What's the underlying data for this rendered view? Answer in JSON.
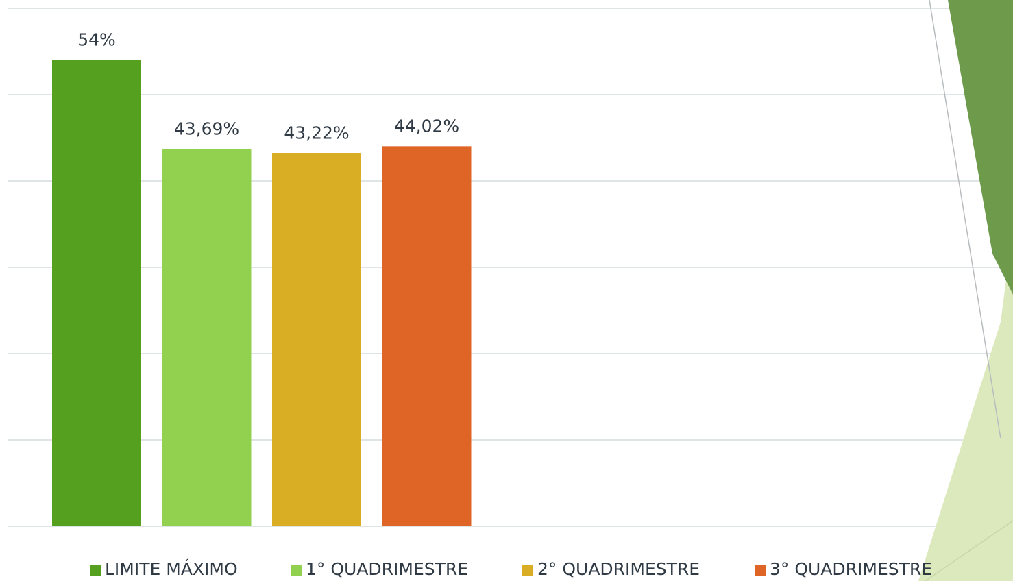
{
  "chart_data": {
    "type": "bar",
    "categories": [
      null
    ],
    "series": [
      {
        "name": "LIMITE MÁXIMO",
        "color": "#55a11f",
        "values": [
          54
        ],
        "value_labels": [
          "54%"
        ]
      },
      {
        "name": "1° QUADRIMESTRE",
        "color": "#92d050",
        "values": [
          43.69
        ],
        "value_labels": [
          "43,69%"
        ]
      },
      {
        "name": "2° QUADRIMESTRE",
        "color": "#d9ae25",
        "values": [
          43.22
        ],
        "value_labels": [
          "43,22%"
        ]
      },
      {
        "name": "3° QUADRIMESTRE",
        "color": "#df6526",
        "values": [
          44.02
        ],
        "value_labels": [
          "44,02%"
        ]
      }
    ],
    "ylim": [
      0,
      60
    ],
    "yticks": [
      0,
      10,
      20,
      30,
      40,
      50,
      60
    ],
    "grid": true,
    "legend": "bottom"
  }
}
